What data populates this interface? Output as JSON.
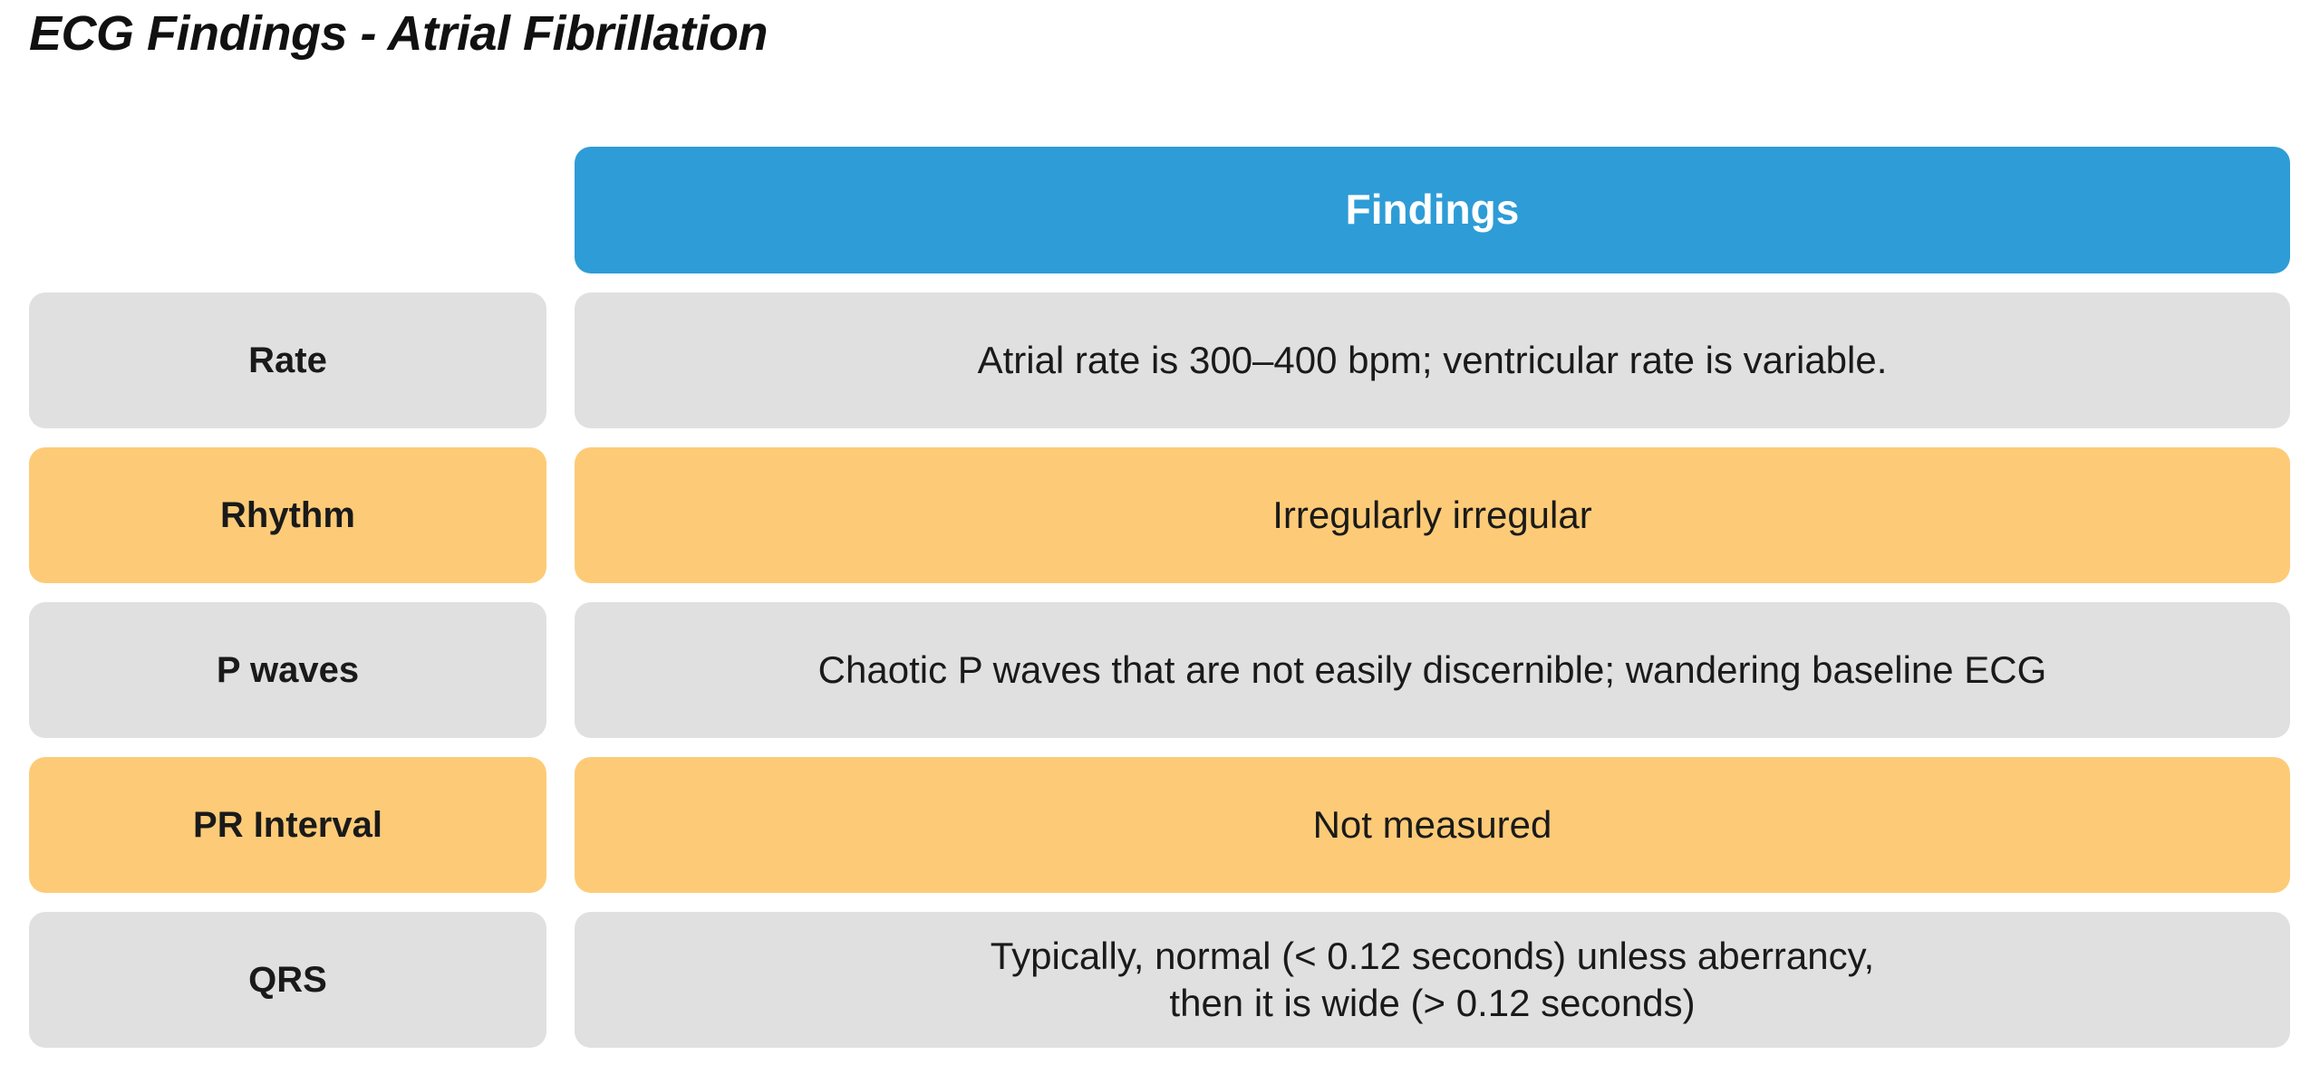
{
  "page": {
    "title": "ECG Findings - Atrial Fibrillation"
  },
  "table": {
    "header": {
      "findings_label": "Findings"
    },
    "rows": [
      {
        "label": "Rate",
        "finding": "Atrial rate is 300–400 bpm; ventricular rate is variable.",
        "tone": "gray"
      },
      {
        "label": "Rhythm",
        "finding": "Irregularly irregular",
        "tone": "orange"
      },
      {
        "label": "P waves",
        "finding": "Chaotic P waves that are not easily discernible; wandering baseline ECG",
        "tone": "gray"
      },
      {
        "label": "PR Interval",
        "finding": "Not measured",
        "tone": "orange"
      },
      {
        "label": "QRS",
        "finding": "Typically, normal (< 0.12 seconds) unless aberrancy,\nthen it is wide (> 0.12 seconds)",
        "tone": "gray"
      }
    ],
    "colors": {
      "header_bg": "#2E9CD6",
      "header_text": "#FFFFFF",
      "row_gray": "#E0E0E0",
      "row_orange": "#FDCB77",
      "text": "#1A1A1A"
    }
  }
}
